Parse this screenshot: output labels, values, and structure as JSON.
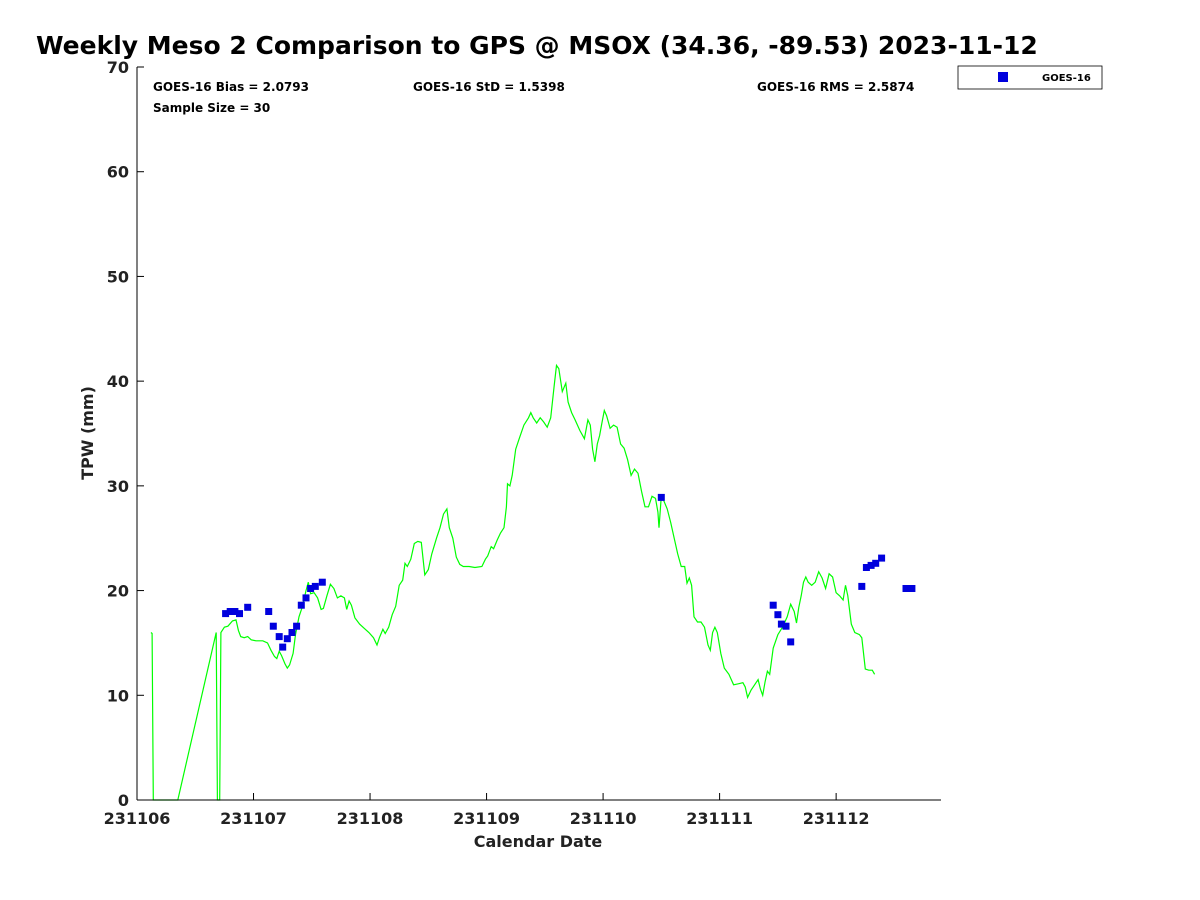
{
  "chart_data": {
    "type": "scatter",
    "title": "Weekly Meso 2 Comparison to GPS @ MSOX (34.36, -89.53) 2023-11-12",
    "xlabel": "Calendar Date",
    "ylabel": "TPW (mm)",
    "xlim": [
      0,
      6.9
    ],
    "ylim": [
      0,
      70
    ],
    "x_ticks": [
      {
        "value": 0,
        "label": "231106"
      },
      {
        "value": 1,
        "label": "231107"
      },
      {
        "value": 2,
        "label": "231108"
      },
      {
        "value": 3,
        "label": "231109"
      },
      {
        "value": 4,
        "label": "231110"
      },
      {
        "value": 5,
        "label": "231111"
      },
      {
        "value": 6,
        "label": "231112"
      }
    ],
    "y_ticks": [
      0,
      10,
      20,
      30,
      40,
      50,
      60,
      70
    ],
    "grid": false,
    "legend_position": "top-right",
    "stats": {
      "bias": "GOES-16 Bias = 2.0793",
      "std": "GOES-16 StD = 1.5398",
      "rms": "GOES-16 RMS = 2.5874",
      "sample_size": "Sample Size = 30"
    },
    "series": [
      {
        "name": "GPS",
        "kind": "line",
        "color": "#00ff00",
        "points": [
          [
            0.12,
            16
          ],
          [
            0.13,
            15.9
          ],
          [
            0.14,
            0
          ],
          [
            0.35,
            0
          ],
          [
            0.68,
            16
          ],
          [
            0.69,
            0
          ],
          [
            0.71,
            0
          ],
          [
            0.72,
            16
          ],
          [
            0.75,
            16.5
          ],
          [
            0.78,
            16.6
          ],
          [
            0.82,
            17.1
          ],
          [
            0.85,
            17.2
          ],
          [
            0.87,
            16.2
          ],
          [
            0.89,
            15.6
          ],
          [
            0.92,
            15.5
          ],
          [
            0.95,
            15.6
          ],
          [
            0.98,
            15.3
          ],
          [
            1.02,
            15.2
          ],
          [
            1.08,
            15.2
          ],
          [
            1.12,
            15
          ],
          [
            1.15,
            14.3
          ],
          [
            1.18,
            13.7
          ],
          [
            1.2,
            13.5
          ],
          [
            1.22,
            14.2
          ],
          [
            1.24,
            13.8
          ],
          [
            1.27,
            13
          ],
          [
            1.29,
            12.6
          ],
          [
            1.31,
            12.9
          ],
          [
            1.34,
            14
          ],
          [
            1.36,
            15.8
          ],
          [
            1.39,
            17.5
          ],
          [
            1.42,
            18.5
          ],
          [
            1.45,
            20
          ],
          [
            1.47,
            20.8
          ],
          [
            1.49,
            19.7
          ],
          [
            1.52,
            19.8
          ],
          [
            1.55,
            19.3
          ],
          [
            1.58,
            18.2
          ],
          [
            1.6,
            18.3
          ],
          [
            1.63,
            19.5
          ],
          [
            1.66,
            20.6
          ],
          [
            1.69,
            20.2
          ],
          [
            1.72,
            19.3
          ],
          [
            1.75,
            19.5
          ],
          [
            1.78,
            19.3
          ],
          [
            1.8,
            18.2
          ],
          [
            1.82,
            19
          ],
          [
            1.84,
            18.6
          ],
          [
            1.87,
            17.4
          ],
          [
            1.91,
            16.8
          ],
          [
            1.95,
            16.4
          ],
          [
            1.99,
            16
          ],
          [
            2.03,
            15.5
          ],
          [
            2.06,
            14.8
          ],
          [
            2.08,
            15.5
          ],
          [
            2.11,
            16.3
          ],
          [
            2.13,
            15.9
          ],
          [
            2.16,
            16.5
          ],
          [
            2.19,
            17.7
          ],
          [
            2.22,
            18.5
          ],
          [
            2.25,
            20.5
          ],
          [
            2.28,
            21
          ],
          [
            2.3,
            22.6
          ],
          [
            2.32,
            22.3
          ],
          [
            2.35,
            23
          ],
          [
            2.38,
            24.5
          ],
          [
            2.41,
            24.7
          ],
          [
            2.44,
            24.6
          ],
          [
            2.47,
            21.5
          ],
          [
            2.5,
            22
          ],
          [
            2.53,
            23.5
          ],
          [
            2.57,
            25
          ],
          [
            2.6,
            26
          ],
          [
            2.63,
            27.3
          ],
          [
            2.66,
            27.8
          ],
          [
            2.68,
            26
          ],
          [
            2.71,
            25
          ],
          [
            2.74,
            23.2
          ],
          [
            2.77,
            22.5
          ],
          [
            2.8,
            22.3
          ],
          [
            2.85,
            22.3
          ],
          [
            2.9,
            22.2
          ],
          [
            2.96,
            22.3
          ],
          [
            2.99,
            23
          ],
          [
            3.01,
            23.3
          ],
          [
            3.04,
            24.2
          ],
          [
            3.06,
            24
          ],
          [
            3.09,
            24.8
          ],
          [
            3.12,
            25.5
          ],
          [
            3.15,
            26
          ],
          [
            3.17,
            28
          ],
          [
            3.18,
            30.2
          ],
          [
            3.2,
            30
          ],
          [
            3.22,
            31
          ],
          [
            3.25,
            33.5
          ],
          [
            3.28,
            34.5
          ],
          [
            3.32,
            35.8
          ],
          [
            3.36,
            36.5
          ],
          [
            3.38,
            37
          ],
          [
            3.4,
            36.5
          ],
          [
            3.43,
            36
          ],
          [
            3.46,
            36.5
          ],
          [
            3.49,
            36.1
          ],
          [
            3.52,
            35.6
          ],
          [
            3.55,
            36.5
          ],
          [
            3.58,
            39.5
          ],
          [
            3.6,
            41.5
          ],
          [
            3.62,
            41.2
          ],
          [
            3.65,
            39
          ],
          [
            3.68,
            39.8
          ],
          [
            3.7,
            38
          ],
          [
            3.73,
            37
          ],
          [
            3.76,
            36.3
          ],
          [
            3.8,
            35.3
          ],
          [
            3.84,
            34.5
          ],
          [
            3.87,
            36.3
          ],
          [
            3.89,
            35.8
          ],
          [
            3.91,
            33.5
          ],
          [
            3.93,
            32.3
          ],
          [
            3.95,
            34
          ],
          [
            3.97,
            34.8
          ],
          [
            3.99,
            36
          ],
          [
            4.01,
            37.2
          ],
          [
            4.03,
            36.7
          ],
          [
            4.06,
            35.5
          ],
          [
            4.09,
            35.8
          ],
          [
            4.12,
            35.6
          ],
          [
            4.15,
            34
          ],
          [
            4.18,
            33.6
          ],
          [
            4.21,
            32.5
          ],
          [
            4.24,
            31
          ],
          [
            4.27,
            31.6
          ],
          [
            4.3,
            31.2
          ],
          [
            4.33,
            29.5
          ],
          [
            4.36,
            28
          ],
          [
            4.39,
            28
          ],
          [
            4.42,
            29
          ],
          [
            4.45,
            28.8
          ],
          [
            4.47,
            27.5
          ],
          [
            4.48,
            26
          ],
          [
            4.5,
            29
          ],
          [
            4.52,
            28.6
          ],
          [
            4.55,
            27.8
          ],
          [
            4.58,
            26.5
          ],
          [
            4.61,
            25
          ],
          [
            4.64,
            23.5
          ],
          [
            4.67,
            22.3
          ],
          [
            4.7,
            22.3
          ],
          [
            4.72,
            20.7
          ],
          [
            4.74,
            21.2
          ],
          [
            4.76,
            20.5
          ],
          [
            4.78,
            17.5
          ],
          [
            4.81,
            17
          ],
          [
            4.84,
            17
          ],
          [
            4.87,
            16.5
          ],
          [
            4.9,
            14.8
          ],
          [
            4.92,
            14.3
          ],
          [
            4.94,
            16
          ],
          [
            4.96,
            16.5
          ],
          [
            4.98,
            16
          ],
          [
            5.01,
            14
          ],
          [
            5.04,
            12.6
          ],
          [
            5.08,
            12
          ],
          [
            5.12,
            11
          ],
          [
            5.16,
            11.1
          ],
          [
            5.2,
            11.2
          ],
          [
            5.22,
            10.8
          ],
          [
            5.24,
            9.8
          ],
          [
            5.27,
            10.5
          ],
          [
            5.3,
            11
          ],
          [
            5.33,
            11.5
          ],
          [
            5.35,
            10.6
          ],
          [
            5.37,
            10
          ],
          [
            5.39,
            11.3
          ],
          [
            5.41,
            12.3
          ],
          [
            5.43,
            12
          ],
          [
            5.46,
            14.5
          ],
          [
            5.5,
            15.8
          ],
          [
            5.54,
            16.5
          ],
          [
            5.58,
            17.5
          ],
          [
            5.61,
            18.7
          ],
          [
            5.64,
            18
          ],
          [
            5.66,
            16.9
          ],
          [
            5.68,
            18.4
          ],
          [
            5.7,
            19.5
          ],
          [
            5.72,
            20.8
          ],
          [
            5.74,
            21.3
          ],
          [
            5.76,
            20.8
          ],
          [
            5.79,
            20.5
          ],
          [
            5.82,
            20.8
          ],
          [
            5.85,
            21.8
          ],
          [
            5.88,
            21.2
          ],
          [
            5.91,
            20.2
          ],
          [
            5.94,
            21.6
          ],
          [
            5.97,
            21.3
          ],
          [
            6.0,
            19.8
          ],
          [
            6.03,
            19.5
          ],
          [
            6.06,
            19.1
          ],
          [
            6.08,
            20.5
          ],
          [
            6.1,
            19.5
          ],
          [
            6.13,
            16.8
          ],
          [
            6.16,
            16
          ],
          [
            6.2,
            15.8
          ],
          [
            6.22,
            15.5
          ],
          [
            6.25,
            12.5
          ],
          [
            6.28,
            12.4
          ],
          [
            6.31,
            12.4
          ],
          [
            6.33,
            12
          ]
        ]
      },
      {
        "name": "GOES-16",
        "kind": "scatter",
        "color": "#0000dd",
        "x": [
          0.76,
          0.8,
          0.84,
          0.88,
          0.95,
          1.13,
          1.17,
          1.22,
          1.25,
          1.29,
          1.33,
          1.37,
          1.41,
          1.45,
          1.49,
          1.53,
          1.59,
          4.5,
          5.46,
          5.5,
          5.53,
          5.57,
          5.61,
          6.22,
          6.26,
          6.3,
          6.34,
          6.39,
          6.6,
          6.65
        ],
        "y": [
          17.8,
          18,
          18,
          17.8,
          18.4,
          18,
          16.6,
          15.6,
          14.6,
          15.4,
          16,
          16.6,
          18.6,
          19.3,
          20.2,
          20.4,
          20.8,
          28.9,
          18.6,
          17.7,
          16.8,
          16.6,
          15.1,
          20.4,
          22.2,
          22.4,
          22.6,
          23.1,
          20.2,
          20.2
        ]
      }
    ]
  }
}
